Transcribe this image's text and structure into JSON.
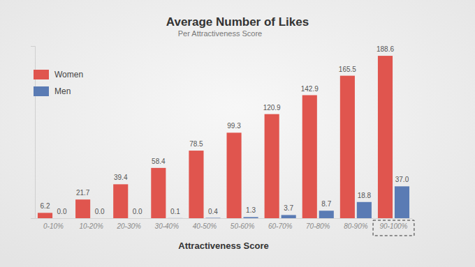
{
  "chart_data": {
    "type": "bar",
    "title": "Average Number of Likes",
    "subtitle": "Per Attractiveness Score",
    "x_label": "Attractiveness Score",
    "categories": [
      "0-10%",
      "10-20%",
      "20-30%",
      "30-40%",
      "40-50%",
      "50-60%",
      "60-70%",
      "70-80%",
      "80-90%",
      "90-100%"
    ],
    "series": [
      {
        "name": "Women",
        "color": "#e0554e",
        "values": [
          6.2,
          21.7,
          39.4,
          58.4,
          78.5,
          99.3,
          120.9,
          142.9,
          165.5,
          188.6
        ],
        "value_labels": [
          "6.2",
          "21.7",
          "39.4",
          "58.4",
          "78.5",
          "99.3",
          "120.9",
          "142.9",
          "165.5",
          "188.6"
        ]
      },
      {
        "name": "Men",
        "color": "#5a7bb4",
        "values": [
          0.0,
          0.0,
          0.0,
          0.1,
          0.4,
          1.3,
          3.7,
          8.7,
          18.8,
          37.0
        ],
        "value_labels": [
          "0.0",
          "0.0",
          "0.0",
          "0.1",
          "0.4",
          "1.3",
          "3.7",
          "8.7",
          "18.8",
          "37.0"
        ]
      }
    ],
    "ylim": [
      0,
      200
    ],
    "data_labels": true,
    "legend": "top-left",
    "tick_labels": "x",
    "grid": false
  }
}
